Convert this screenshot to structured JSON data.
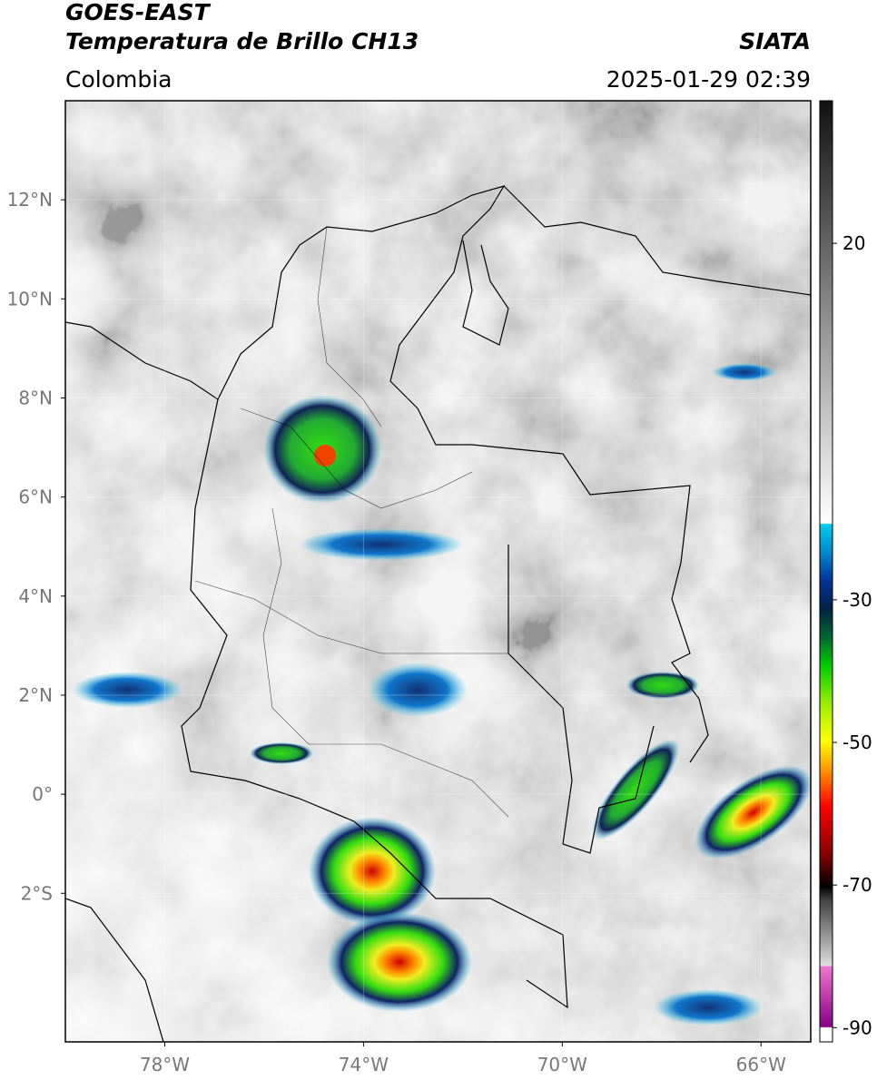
{
  "header": {
    "title_line1": "GOES-EAST",
    "title_line2": "Temperatura de Brillo CH13",
    "agency": "SIATA",
    "region": "Colombia",
    "timestamp": "2025-01-29 02:39"
  },
  "map": {
    "lonlim": [
      -80,
      -65
    ],
    "latlim": [
      -5,
      14
    ],
    "lon_ticks": [
      {
        "value": -78,
        "label": "78°W"
      },
      {
        "value": -74,
        "label": "74°W"
      },
      {
        "value": -70,
        "label": "70°W"
      },
      {
        "value": -66,
        "label": "66°W"
      }
    ],
    "lat_ticks": [
      {
        "value": 12,
        "label": "12°N"
      },
      {
        "value": 10,
        "label": "10°N"
      },
      {
        "value": 8,
        "label": "8°N"
      },
      {
        "value": 6,
        "label": "6°N"
      },
      {
        "value": 4,
        "label": "4°N"
      },
      {
        "value": 2,
        "label": "2°N"
      },
      {
        "value": 0,
        "label": "0°"
      },
      {
        "value": -2,
        "label": "2°S"
      }
    ]
  },
  "colorbar": {
    "lim": [
      -92,
      40
    ],
    "ticks": [
      20,
      -30,
      -50,
      -70,
      -90
    ]
  }
}
